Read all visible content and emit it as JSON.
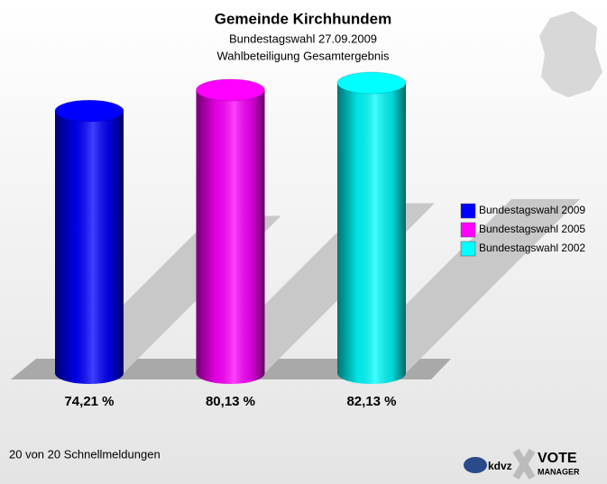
{
  "chart_data": {
    "type": "bar",
    "title": "Gemeinde Kirchhundem",
    "subtitle": [
      "Bundestagswahl 27.09.2009",
      "Wahlbeteiligung Gesamtergebnis"
    ],
    "categories": [
      "Bundestagswahl 2009",
      "Bundestagswahl 2005",
      "Bundestagswahl 2002"
    ],
    "values": [
      74.21,
      80.13,
      82.13
    ],
    "value_labels": [
      "74,21 %",
      "80,13 %",
      "82,13 %"
    ],
    "colors": [
      "#0000ff",
      "#ff00ff",
      "#00ffff"
    ],
    "legend": "right",
    "footer": "20 von 20 Schnellmeldungen",
    "logo": [
      "kdvz",
      "VOTE",
      "MANAGER"
    ]
  }
}
